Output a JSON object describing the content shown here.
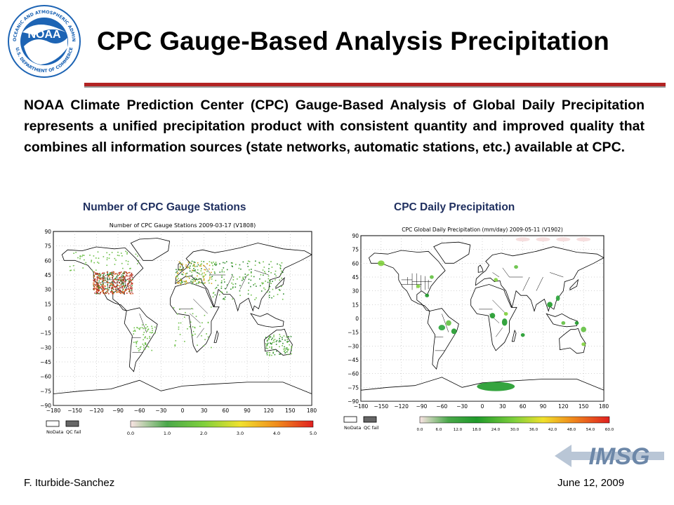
{
  "header": {
    "title": "CPC Gauge-Based Analysis Precipitation",
    "logo_text": "NOAA",
    "logo_ring_top": "NATIONAL OCEANIC AND ATMOSPHERIC ADMINISTRATION",
    "logo_ring_bottom": "U.S. DEPARTMENT OF COMMERCE"
  },
  "body": {
    "paragraph": "NOAA Climate Prediction Center (CPC) Gauge-Based Analysis of Global Daily Precipitation represents a unified precipitation product with consistent quantity and improved quality that combines all information sources (state networks, automatic stations, etc.) available at CPC."
  },
  "captions": {
    "left": "Number of CPC Gauge Stations",
    "right": "CPC Daily Precipitation"
  },
  "maps": [
    {
      "title": "Number of CPC Gauge Stations   2009-03-17   (V1808)",
      "lat_ticks": [
        "90",
        "75",
        "60",
        "45",
        "30",
        "15",
        "0",
        "−15",
        "−30",
        "−45",
        "−60",
        "−75",
        "−90"
      ],
      "lon_ticks": [
        "−180",
        "−150",
        "−120",
        "−90",
        "−60",
        "−30",
        "0",
        "30",
        "60",
        "90",
        "120",
        "150",
        "180"
      ],
      "legend_nodata": "NoData",
      "legend_qcfail": "QC fail",
      "scale_ticks": [
        "0.0",
        "1.0",
        "2.0",
        "3.0",
        "4.0",
        "5.0"
      ]
    },
    {
      "title": "CPC Global Daily Precipitation (mm/day) 2009-05-11 (V1902)",
      "lat_ticks": [
        "90",
        "75",
        "60",
        "45",
        "30",
        "15",
        "0",
        "−15",
        "−30",
        "−45",
        "−60",
        "−75",
        "−90"
      ],
      "lon_ticks": [
        "−180",
        "−150",
        "−120",
        "−90",
        "−60",
        "−30",
        "0",
        "30",
        "60",
        "90",
        "120",
        "150",
        "180"
      ],
      "legend_nodata": "NoData",
      "legend_qcfail": "QC fail",
      "scale_ticks": [
        "0.0",
        "6.0",
        "12.0",
        "18.0",
        "24.0",
        "30.0",
        "36.0",
        "42.0",
        "48.0",
        "54.0",
        "60.0"
      ]
    }
  ],
  "colors": {
    "title_rule": "#b22323",
    "caption": "#1f2f5f",
    "noaa_blue": "#1d64b4",
    "imsg_blue": "#6c87a8"
  },
  "footer": {
    "author": "F. Iturbide-Sanchez",
    "date": "June 12, 2009",
    "imsg_logo_text": "IMSG"
  }
}
